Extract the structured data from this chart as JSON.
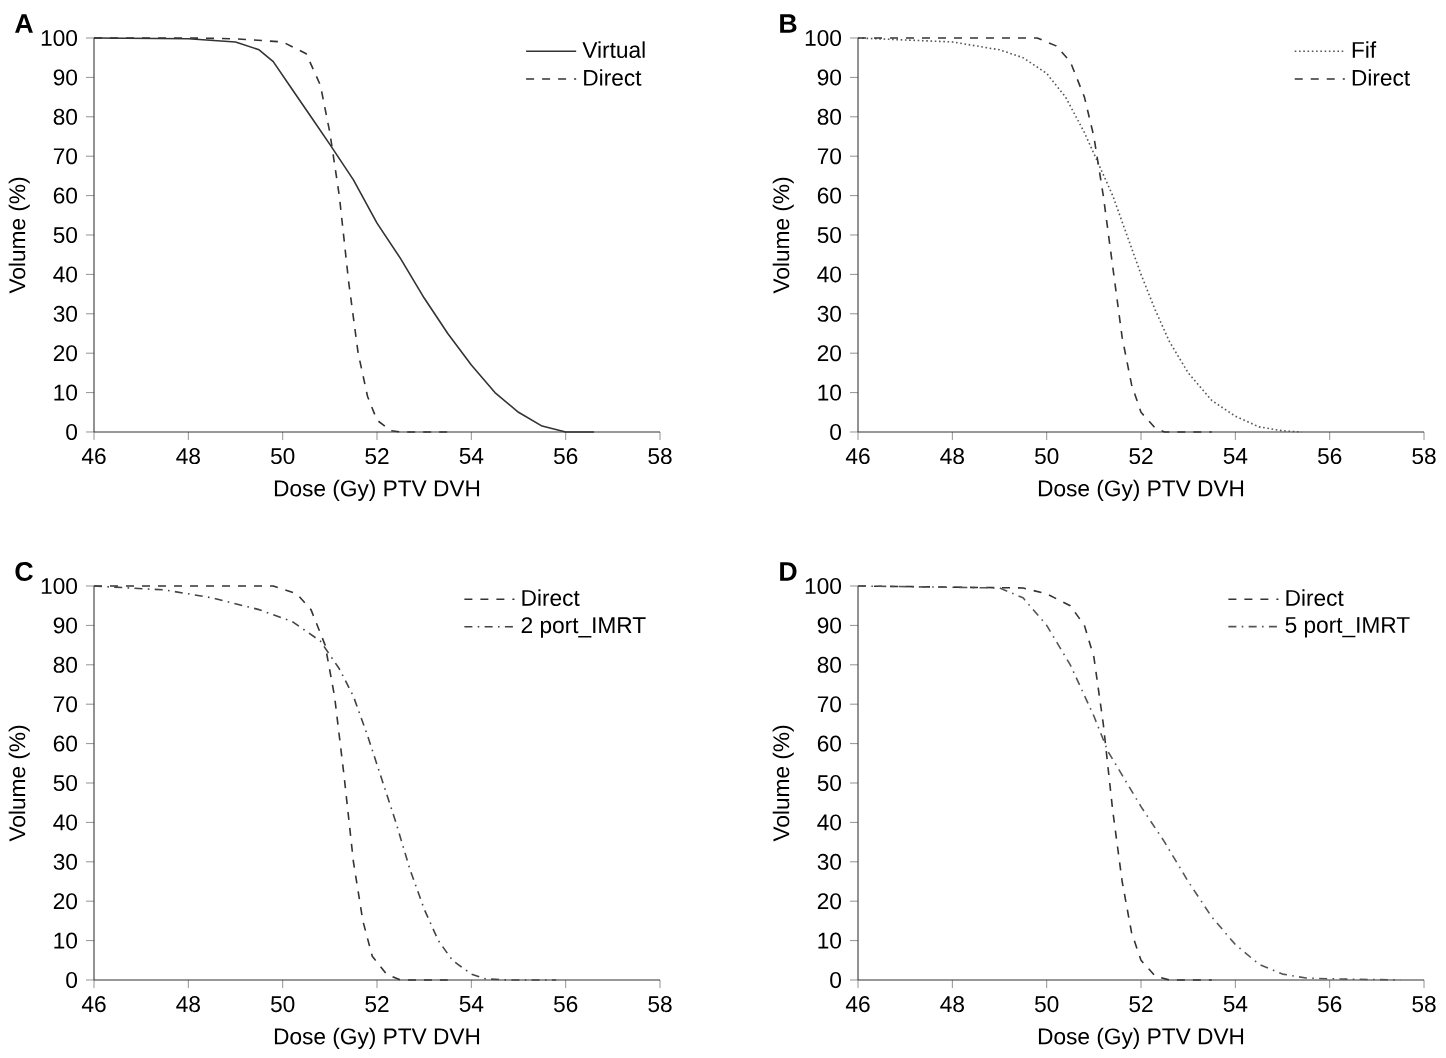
{
  "chart_data": [
    {
      "type": "line",
      "title": "A",
      "xlabel": "Dose (Gy) PTV DVH",
      "ylabel": "Volume (%)",
      "xlim": [
        46,
        58
      ],
      "ylim": [
        0,
        100
      ],
      "xticks": [
        46,
        48,
        50,
        52,
        54,
        56,
        58
      ],
      "yticks": [
        0,
        10,
        20,
        30,
        40,
        50,
        60,
        70,
        80,
        90,
        100
      ],
      "legend": "top right",
      "series": [
        {
          "name": "Virtual",
          "color": "#333333",
          "line_style": "solid",
          "x": [
            46,
            48,
            49,
            49.5,
            49.8,
            50.2,
            50.6,
            51,
            51.5,
            52,
            52.5,
            53,
            53.5,
            54,
            54.5,
            55,
            55.5,
            56,
            56.6
          ],
          "values": [
            100,
            99.8,
            99,
            97,
            94,
            87,
            80,
            73,
            64,
            53,
            44,
            34,
            25,
            17,
            10,
            5,
            1.5,
            0,
            0
          ]
        },
        {
          "name": "Direct",
          "color": "#333333",
          "line_style": "dashed",
          "x": [
            46,
            48,
            49,
            50,
            50.5,
            50.8,
            51,
            51.2,
            51.4,
            51.6,
            51.8,
            52,
            52.3,
            52.5,
            53.5
          ],
          "values": [
            100,
            100,
            99.8,
            99,
            96,
            88,
            76,
            60,
            38,
            20,
            9,
            3,
            0.3,
            0,
            0
          ]
        }
      ]
    },
    {
      "type": "line",
      "title": "B",
      "xlabel": "Dose (Gy) PTV DVH",
      "ylabel": "Volume (%)",
      "xlim": [
        46,
        58
      ],
      "ylim": [
        0,
        100
      ],
      "xticks": [
        46,
        48,
        50,
        52,
        54,
        56,
        58
      ],
      "yticks": [
        0,
        10,
        20,
        30,
        40,
        50,
        60,
        70,
        80,
        90,
        100
      ],
      "legend": "top right",
      "series": [
        {
          "name": "Fif",
          "color": "#555555",
          "line_style": "dotted",
          "x": [
            46,
            48,
            49,
            49.5,
            50,
            50.4,
            50.8,
            51.1,
            51.4,
            51.7,
            52,
            52.3,
            52.6,
            53,
            53.5,
            54,
            54.5,
            55,
            55.4
          ],
          "values": [
            100,
            99,
            97,
            95,
            91,
            85,
            76,
            68,
            60,
            50,
            40,
            31,
            23,
            15,
            8,
            4,
            1.3,
            0.3,
            0
          ]
        },
        {
          "name": "Direct",
          "color": "#333333",
          "line_style": "dashed",
          "x": [
            46,
            49.8,
            50.2,
            50.5,
            50.8,
            51,
            51.2,
            51.4,
            51.6,
            51.8,
            52,
            52.3,
            52.5,
            53.5
          ],
          "values": [
            100,
            100,
            98,
            94,
            85,
            75,
            60,
            42,
            24,
            12,
            5,
            1,
            0,
            0
          ]
        }
      ]
    },
    {
      "type": "line",
      "title": "C",
      "xlabel": "Dose (Gy) PTV DVH",
      "ylabel": "Volume (%)",
      "xlim": [
        46,
        58
      ],
      "ylim": [
        0,
        100
      ],
      "xticks": [
        46,
        48,
        50,
        52,
        54,
        56,
        58
      ],
      "yticks": [
        0,
        10,
        20,
        30,
        40,
        50,
        60,
        70,
        80,
        90,
        100
      ],
      "legend": "top right",
      "series": [
        {
          "name": "Direct",
          "color": "#333333",
          "line_style": "dashed",
          "x": [
            46,
            49.8,
            50.3,
            50.6,
            50.9,
            51.1,
            51.3,
            51.5,
            51.7,
            51.9,
            52.2,
            52.5,
            53.5
          ],
          "values": [
            100,
            100,
            98,
            94,
            85,
            72,
            52,
            30,
            15,
            6,
            1.5,
            0,
            0
          ]
        },
        {
          "name": "2 port_IMRT",
          "color": "#444444",
          "line_style": "dashdot",
          "x": [
            46,
            47.5,
            48.5,
            49.5,
            50.2,
            50.8,
            51.2,
            51.5,
            51.8,
            52.1,
            52.4,
            52.7,
            53,
            53.3,
            53.6,
            54,
            54.3,
            54.8,
            55.8
          ],
          "values": [
            100,
            99,
            97,
            94,
            91,
            86,
            79,
            72,
            62,
            51,
            40,
            28,
            18,
            10,
            5,
            1.5,
            0.3,
            0,
            0
          ]
        }
      ]
    },
    {
      "type": "line",
      "title": "D",
      "xlabel": "Dose (Gy) PTV DVH",
      "ylabel": "Volume (%)",
      "xlim": [
        46,
        58
      ],
      "ylim": [
        0,
        100
      ],
      "xticks": [
        46,
        48,
        50,
        52,
        54,
        56,
        58
      ],
      "yticks": [
        0,
        10,
        20,
        30,
        40,
        50,
        60,
        70,
        80,
        90,
        100
      ],
      "legend": "top right",
      "series": [
        {
          "name": "Direct",
          "color": "#333333",
          "line_style": "dashed",
          "x": [
            46,
            49.5,
            50,
            50.5,
            50.8,
            51,
            51.2,
            51.4,
            51.6,
            51.8,
            52,
            52.3,
            52.6,
            53.5
          ],
          "values": [
            100,
            99.5,
            98,
            95,
            90,
            82,
            65,
            43,
            25,
            12,
            5,
            1,
            0,
            0
          ]
        },
        {
          "name": "5 port_IMRT",
          "color": "#555555",
          "line_style": "dashdot",
          "x": [
            46,
            49,
            49.5,
            50,
            50.5,
            51,
            51.3,
            51.6,
            52,
            52.5,
            53,
            53.5,
            54,
            54.5,
            55,
            55.5,
            56,
            57.5
          ],
          "values": [
            100,
            99.5,
            97,
            90,
            80,
            67,
            58,
            52,
            44,
            35,
            25,
            16,
            9,
            4,
            1.5,
            0.5,
            0.3,
            0
          ]
        }
      ]
    }
  ]
}
